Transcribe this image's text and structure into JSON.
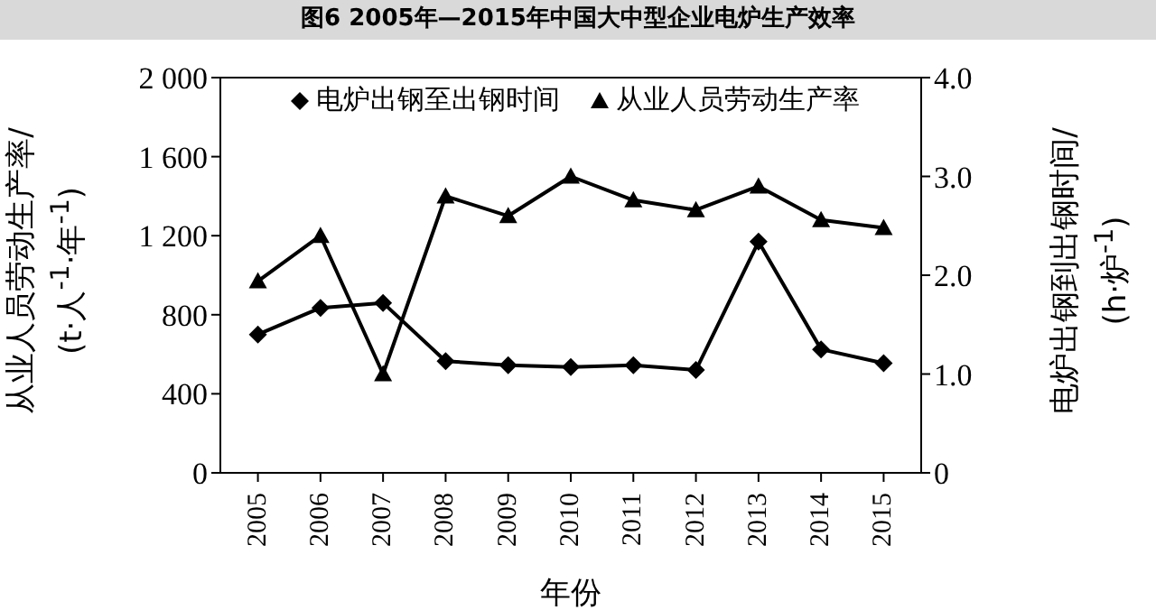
{
  "chart_data": {
    "type": "line",
    "title": "图6 2005年—2015年中国大中型企业电炉生产效率",
    "xlabel": "年份",
    "ylabel": "从业人员劳动生产率/(t·人$^{-1}$·年$^{-1}$)",
    "y2label": "电炉出钢到出钢时间/(h·炉$^{-1}$)",
    "categories": [
      "2005",
      "2006",
      "2007",
      "2008",
      "2009",
      "2010",
      "2011",
      "2012",
      "2013",
      "2014",
      "2015"
    ],
    "series": [
      {
        "name": "电炉出钢至出钢时间",
        "color": "#000000",
        "axis": "y2",
        "marker": "diamond",
        "values": [
          1.4,
          1.67,
          1.72,
          1.13,
          1.09,
          1.07,
          1.09,
          1.04,
          2.34,
          1.25,
          1.11
        ]
      },
      {
        "name": "从业人员劳动生产率",
        "color": "#000000",
        "marker": "triangle",
        "values": [
          970,
          1200,
          500,
          1400,
          1300,
          1500,
          1380,
          1330,
          1450,
          1280,
          1240
        ]
      }
    ],
    "ylim": [
      0,
      2000
    ],
    "yticks": [
      0,
      400,
      800,
      {
        "value": 1200,
        "label": "1 200"
      },
      {
        "value": 1600,
        "label": "1 600"
      },
      {
        "value": 2000,
        "label": "2 000"
      }
    ],
    "y2lim": [
      0,
      4
    ],
    "y2ticks": [
      0,
      {
        "value": 1,
        "label": "1.0"
      },
      {
        "value": 2,
        "label": "2.0"
      },
      {
        "value": 3,
        "label": "3.0"
      },
      {
        "value": 4,
        "label": "4.0"
      }
    ],
    "grid": false,
    "legend": "top",
    "line_style": "solid"
  }
}
